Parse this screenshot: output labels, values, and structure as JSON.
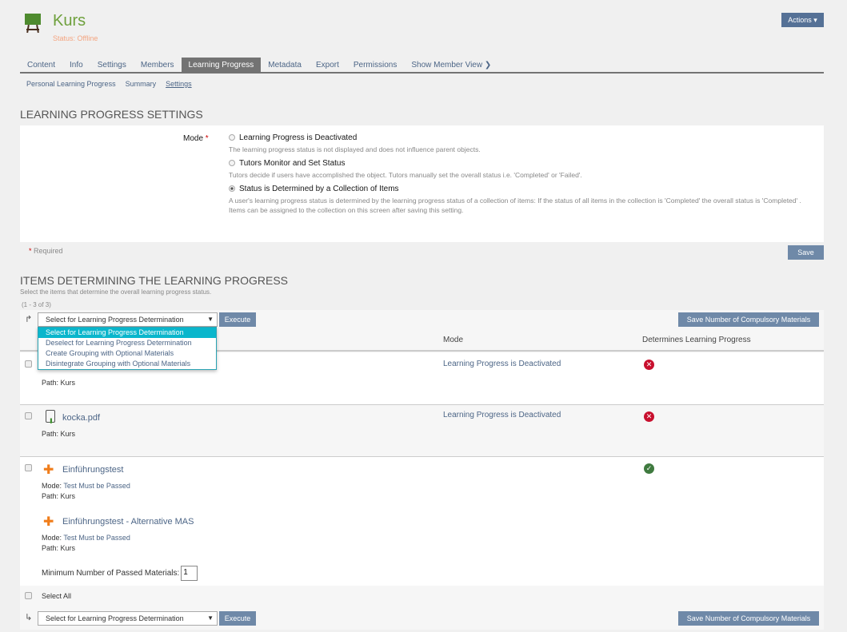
{
  "header": {
    "title": "Kurs",
    "status": "Status: Offline",
    "actions_label": "Actions ▾"
  },
  "tabs": [
    "Content",
    "Info",
    "Settings",
    "Members",
    "Learning Progress",
    "Metadata",
    "Export",
    "Permissions",
    "Show Member View ❯"
  ],
  "subtabs": [
    "Personal Learning Progress",
    "Summary",
    "Settings"
  ],
  "settings": {
    "heading": "Learning Progress Settings",
    "mode_label": "Mode",
    "required_mark": "*",
    "options": [
      {
        "label": "Learning Progress is Deactivated",
        "desc": "The learning progress status is not displayed and does not influence parent objects.",
        "selected": false
      },
      {
        "label": "Tutors Monitor and Set Status",
        "desc": "Tutors decide if users have accomplished the object. Tutors manually set the overall status i.e. 'Completed' or 'Failed'.",
        "selected": false
      },
      {
        "label": "Status is Determined by a Collection of Items",
        "desc": "A user's learning progress status is determined by the learning progress status of a collection of items: If the status of all items in the collection is 'Completed' the overall status is 'Completed' .",
        "desc2": "Items can be assigned to the collection on this screen after saving this setting.",
        "selected": true
      }
    ],
    "required_note": "Required",
    "save_label": "Save"
  },
  "items": {
    "heading": "Items Determining the Learning Progress",
    "subtitle": "Select the items that determine the overall learning progress status.",
    "count": "(1 - 3 of 3)",
    "select_value": "Select for Learning Progress Determination",
    "execute_label": "Execute",
    "save_compulsory_label": "Save Number of Compulsory Materials",
    "dropdown_options": [
      "Select for Learning Progress Determination",
      "Deselect for Learning Progress Determination",
      "Create Grouping with Optional Materials",
      "Disintegrate Grouping with Optional Materials"
    ],
    "columns": {
      "mode": "Mode",
      "determines": "Determines Learning Progress"
    },
    "rows": [
      {
        "path": "Path: Kurs",
        "mode": "Learning Progress is Deactivated",
        "determines": "no"
      },
      {
        "title": "kocka.pdf",
        "path": "Path: Kurs",
        "mode": "Learning Progress is Deactivated",
        "determines": "no"
      },
      {
        "title": "Einführungstest",
        "mode_label": "Mode:",
        "mode_value": "Test Must be Passed",
        "path": "Path: Kurs",
        "determines": "yes",
        "sub": {
          "title": "Einführungstest - Alternative MAS",
          "mode_label": "Mode:",
          "mode_value": "Test Must be Passed",
          "path": "Path: Kurs"
        },
        "min_label": "Minimum Number of Passed Materials:",
        "min_value": "1"
      }
    ],
    "select_all": "Select All"
  },
  "colors": {
    "accent": "#557196",
    "tab_active": "#737373",
    "title": "#6ea03c",
    "highlight": "#0ab6cc"
  }
}
